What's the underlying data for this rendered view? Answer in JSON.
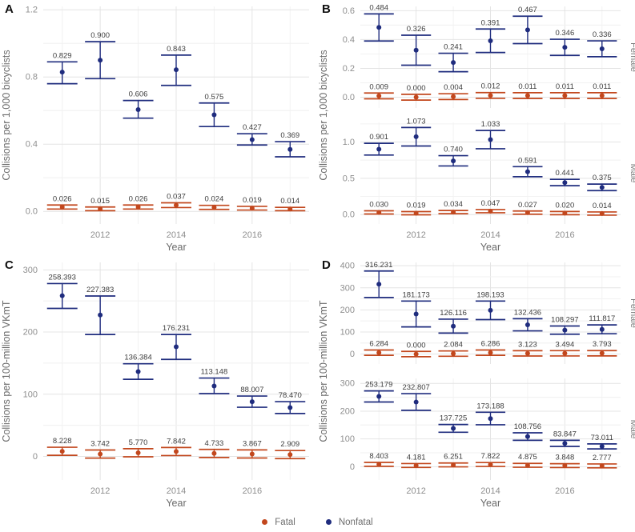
{
  "colors": {
    "fatal": "#c2471d",
    "nonfatal": "#1f2c7e",
    "grid_major": "#e4e4e4",
    "grid_minor": "#f2f2f2",
    "tick_text": "#8f8f8f",
    "axis_title_text": "#6a6a6a",
    "value_label_text": "#3d3d3d",
    "panel_letter_text": "#111111"
  },
  "legend": {
    "items": [
      {
        "label": "Fatal",
        "color": "#c2471d"
      },
      {
        "label": "Nonfatal",
        "color": "#1f2c7e"
      }
    ]
  },
  "chart_data": [
    {
      "panel": "A",
      "type": "scatter",
      "xlabel": "Year",
      "ylabel": "Collisions per 1,000 bicyclists",
      "x": [
        2011,
        2012,
        2013,
        2014,
        2015,
        2016,
        2017
      ],
      "xticks": [
        2012,
        2014,
        2016
      ],
      "legend_position": "bottom",
      "grid": true,
      "facets": [
        {
          "label": "",
          "ylim": [
            -0.075,
            1.22
          ],
          "yticks": [
            0,
            0.4,
            0.8,
            1.2
          ],
          "ytick_labels": [
            "0.0",
            "0.4",
            "0.8",
            "1.2"
          ],
          "series": [
            {
              "name": "Fatal",
              "color": "#c2471d",
              "values": [
                0.026,
                0.015,
                0.026,
                0.037,
                0.024,
                0.019,
                0.014
              ],
              "labels": [
                "0.026",
                "0.015",
                "0.026",
                "0.037",
                "0.024",
                "0.019",
                "0.014"
              ],
              "ci": [
                [
                  0.014,
                  0.038
                ],
                [
                  0.004,
                  0.026
                ],
                [
                  0.014,
                  0.038
                ],
                [
                  0.023,
                  0.051
                ],
                [
                  0.012,
                  0.036
                ],
                [
                  0.008,
                  0.03
                ],
                [
                  0.004,
                  0.024
                ]
              ]
            },
            {
              "name": "Nonfatal",
              "color": "#1f2c7e",
              "values": [
                0.829,
                0.9,
                0.606,
                0.843,
                0.575,
                0.427,
                0.369
              ],
              "labels": [
                "0.829",
                "0.900",
                "0.606",
                "0.843",
                "0.575",
                "0.427",
                "0.369"
              ],
              "ci": [
                [
                  0.76,
                  0.89
                ],
                [
                  0.79,
                  1.01
                ],
                [
                  0.555,
                  0.66
                ],
                [
                  0.75,
                  0.93
                ],
                [
                  0.505,
                  0.645
                ],
                [
                  0.395,
                  0.462
                ],
                [
                  0.325,
                  0.415
                ]
              ]
            }
          ]
        }
      ]
    },
    {
      "panel": "B",
      "type": "scatter",
      "xlabel": "Year",
      "ylabel": "Collisions per 1,000 bicyclists",
      "x": [
        2011,
        2012,
        2013,
        2014,
        2015,
        2016,
        2017
      ],
      "xticks": [
        2012,
        2014,
        2016
      ],
      "grid": true,
      "facets": [
        {
          "label": "Female",
          "ylim": [
            -0.075,
            0.63
          ],
          "yticks": [
            0,
            0.2,
            0.4,
            0.6
          ],
          "ytick_labels": [
            "0.0",
            "0.2",
            "0.4",
            "0.6"
          ],
          "series": [
            {
              "name": "Fatal",
              "color": "#c2471d",
              "values": [
                0.009,
                0.0,
                0.004,
                0.012,
                0.011,
                0.011,
                0.011
              ],
              "labels": [
                "0.009",
                "0.000",
                "0.004",
                "0.012",
                "0.011",
                "0.011",
                "0.011"
              ],
              "ci": [
                [
                  -0.011,
                  0.029
                ],
                [
                  -0.02,
                  0.02
                ],
                [
                  -0.016,
                  0.024
                ],
                [
                  -0.008,
                  0.032
                ],
                [
                  -0.009,
                  0.031
                ],
                [
                  -0.009,
                  0.031
                ],
                [
                  -0.009,
                  0.031
                ]
              ]
            },
            {
              "name": "Nonfatal",
              "color": "#1f2c7e",
              "values": [
                0.484,
                0.326,
                0.241,
                0.391,
                0.467,
                0.346,
                0.336
              ],
              "labels": [
                "0.484",
                "0.326",
                "0.241",
                "0.391",
                "0.467",
                "0.346",
                "0.336"
              ],
              "ci": [
                [
                  0.39,
                  0.578
                ],
                [
                  0.222,
                  0.43
                ],
                [
                  0.177,
                  0.305
                ],
                [
                  0.31,
                  0.473
                ],
                [
                  0.372,
                  0.562
                ],
                [
                  0.29,
                  0.402
                ],
                [
                  0.281,
                  0.391
                ]
              ]
            }
          ]
        },
        {
          "label": "Male",
          "ylim": [
            -0.13,
            1.27
          ],
          "yticks": [
            0,
            0.5,
            1.0
          ],
          "ytick_labels": [
            "0.0",
            "0.5",
            "1.0"
          ],
          "series": [
            {
              "name": "Fatal",
              "color": "#c2471d",
              "values": [
                0.03,
                0.019,
                0.034,
                0.047,
                0.027,
                0.02,
                0.014
              ],
              "labels": [
                "0.030",
                "0.019",
                "0.034",
                "0.047",
                "0.027",
                "0.020",
                "0.014"
              ],
              "ci": [
                [
                  0.008,
                  0.052
                ],
                [
                  -0.003,
                  0.041
                ],
                [
                  0.012,
                  0.056
                ],
                [
                  0.025,
                  0.069
                ],
                [
                  0.005,
                  0.049
                ],
                [
                  -0.002,
                  0.042
                ],
                [
                  -0.008,
                  0.036
                ]
              ]
            },
            {
              "name": "Nonfatal",
              "color": "#1f2c7e",
              "values": [
                0.901,
                1.073,
                0.74,
                1.033,
                0.591,
                0.441,
                0.375
              ],
              "labels": [
                "0.901",
                "1.073",
                "0.740",
                "1.033",
                "0.591",
                "0.441",
                "0.375"
              ],
              "ci": [
                [
                  0.82,
                  0.982
                ],
                [
                  0.945,
                  1.2
                ],
                [
                  0.67,
                  0.812
                ],
                [
                  0.907,
                  1.158
                ],
                [
                  0.522,
                  0.66
                ],
                [
                  0.398,
                  0.485
                ],
                [
                  0.33,
                  0.42
                ]
              ]
            }
          ]
        }
      ]
    },
    {
      "panel": "C",
      "type": "scatter",
      "xlabel": "Year",
      "ylabel": "Collisions per 100-million VKmT",
      "x": [
        2011,
        2012,
        2013,
        2014,
        2015,
        2016,
        2017
      ],
      "xticks": [
        2012,
        2014,
        2016
      ],
      "grid": true,
      "facets": [
        {
          "label": "",
          "ylim": [
            -38,
            312
          ],
          "yticks": [
            0,
            100,
            200,
            300
          ],
          "ytick_labels": [
            "0",
            "100",
            "200",
            "300"
          ],
          "series": [
            {
              "name": "Fatal",
              "color": "#c2471d",
              "values": [
                8.228,
                3.742,
                5.77,
                7.842,
                4.733,
                3.867,
                2.909
              ],
              "labels": [
                "8.228",
                "3.742",
                "5.770",
                "7.842",
                "4.733",
                "3.867",
                "2.909"
              ],
              "ci": [
                [
                  1.7,
                  14.7
                ],
                [
                  -2.8,
                  10.3
                ],
                [
                  -0.7,
                  12.3
                ],
                [
                  1.3,
                  14.3
                ],
                [
                  -1.8,
                  11.2
                ],
                [
                  -2.6,
                  10.4
                ],
                [
                  -3.6,
                  9.4
                ]
              ]
            },
            {
              "name": "Nonfatal",
              "color": "#1f2c7e",
              "values": [
                258.393,
                227.383,
                136.384,
                176.231,
                113.148,
                88.007,
                78.47
              ],
              "labels": [
                "258.393",
                "227.383",
                "136.384",
                "176.231",
                "113.148",
                "88.007",
                "78.470"
              ],
              "ci": [
                [
                  238,
                  278
                ],
                [
                  196,
                  258
                ],
                [
                  124,
                  149
                ],
                [
                  156,
                  196
                ],
                [
                  101,
                  126
                ],
                [
                  79,
                  97
                ],
                [
                  69,
                  88
                ]
              ]
            }
          ]
        }
      ]
    },
    {
      "panel": "D",
      "type": "scatter",
      "xlabel": "Year",
      "ylabel": "Collisions per 100-million VKmT",
      "x": [
        2011,
        2012,
        2013,
        2014,
        2015,
        2016,
        2017
      ],
      "xticks": [
        2012,
        2014,
        2016
      ],
      "grid": true,
      "facets": [
        {
          "label": "Female",
          "ylim": [
            -45,
            415
          ],
          "yticks": [
            0,
            100,
            200,
            300,
            400
          ],
          "ytick_labels": [
            "0",
            "100",
            "200",
            "300",
            "400"
          ],
          "series": [
            {
              "name": "Fatal",
              "color": "#c2471d",
              "values": [
                6.284,
                0.0,
                2.084,
                6.286,
                3.123,
                3.494,
                3.793
              ],
              "labels": [
                "6.284",
                "0.000",
                "2.084",
                "6.286",
                "3.123",
                "3.494",
                "3.793"
              ],
              "ci": [
                [
                  -5.7,
                  18.3
                ],
                [
                  -12,
                  12
                ],
                [
                  -9.9,
                  14.1
                ],
                [
                  -5.7,
                  18.3
                ],
                [
                  -8.9,
                  15.1
                ],
                [
                  -8.5,
                  15.5
                ],
                [
                  -8.2,
                  15.8
                ]
              ]
            },
            {
              "name": "Nonfatal",
              "color": "#1f2c7e",
              "values": [
                316.231,
                181.173,
                126.116,
                198.193,
                132.436,
                108.297,
                111.817
              ],
              "labels": [
                "316.231",
                "181.173",
                "126.116",
                "198.193",
                "132.436",
                "108.297",
                "111.817"
              ],
              "ci": [
                [
                  256,
                  376
                ],
                [
                  123,
                  240
                ],
                [
                  95,
                  158
                ],
                [
                  156,
                  240
                ],
                [
                  105,
                  160
                ],
                [
                  90,
                  127
                ],
                [
                  92,
                  132
                ]
              ]
            }
          ]
        },
        {
          "label": "Male",
          "ylim": [
            -48,
            318
          ],
          "yticks": [
            0,
            100,
            200,
            300
          ],
          "ytick_labels": [
            "0",
            "100",
            "200",
            "300"
          ],
          "series": [
            {
              "name": "Fatal",
              "color": "#c2471d",
              "values": [
                8.403,
                4.181,
                6.251,
                7.822,
                4.875,
                3.848,
                2.777
              ],
              "labels": [
                "8.403",
                "4.181",
                "6.251",
                "7.822",
                "4.875",
                "3.848",
                "2.777"
              ],
              "ci": [
                [
                  1.4,
                  15.4
                ],
                [
                  -2.8,
                  11.2
                ],
                [
                  -0.7,
                  13.3
                ],
                [
                  0.8,
                  14.8
                ],
                [
                  -2.1,
                  11.9
                ],
                [
                  -3.2,
                  10.8
                ],
                [
                  -4.2,
                  9.8
                ]
              ]
            },
            {
              "name": "Nonfatal",
              "color": "#1f2c7e",
              "values": [
                253.179,
                232.807,
                137.725,
                173.188,
                108.756,
                83.847,
                73.011
              ],
              "labels": [
                "253.179",
                "232.807",
                "137.725",
                "173.188",
                "108.756",
                "83.847",
                "73.011"
              ],
              "ci": [
                [
                  233,
                  273
                ],
                [
                  203,
                  263
                ],
                [
                  124,
                  152
                ],
                [
                  151,
                  196
                ],
                [
                  95,
                  122
                ],
                [
                  73,
                  95
                ],
                [
                  64,
                  82
                ]
              ]
            }
          ]
        }
      ]
    }
  ]
}
